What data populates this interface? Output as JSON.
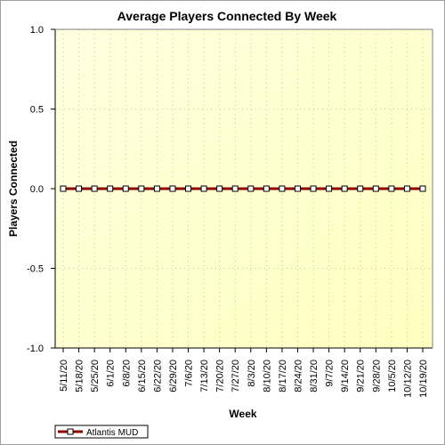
{
  "chart_data": {
    "type": "line",
    "title": "Average Players Connected By Week",
    "xlabel": "Week",
    "ylabel": "Players Connected",
    "ylim": [
      -1.0,
      1.0
    ],
    "yticks": [
      "1.0",
      "0.5",
      "0.0",
      "-0.5",
      "-1.0"
    ],
    "categories": [
      "5/11/20",
      "5/18/20",
      "5/25/20",
      "6/1/20",
      "6/8/20",
      "6/15/20",
      "6/22/20",
      "6/29/20",
      "7/6/20",
      "7/13/20",
      "7/20/20",
      "7/27/20",
      "8/3/20",
      "8/10/20",
      "8/17/20",
      "8/24/20",
      "8/31/20",
      "9/7/20",
      "9/14/20",
      "9/21/20",
      "9/28/20",
      "10/5/20",
      "10/12/20",
      "10/19/20"
    ],
    "series": [
      {
        "name": "Atlantis MUD",
        "color": "#8b0000",
        "marker_color": "#ffffff",
        "values": [
          0,
          0,
          0,
          0,
          0,
          0,
          0,
          0,
          0,
          0,
          0,
          0,
          0,
          0,
          0,
          0,
          0,
          0,
          0,
          0,
          0,
          0,
          0,
          0
        ]
      }
    ],
    "grid": true,
    "legend_position": "bottom-left",
    "plot_background": [
      "#ffffe0",
      "#ffffc0"
    ]
  }
}
